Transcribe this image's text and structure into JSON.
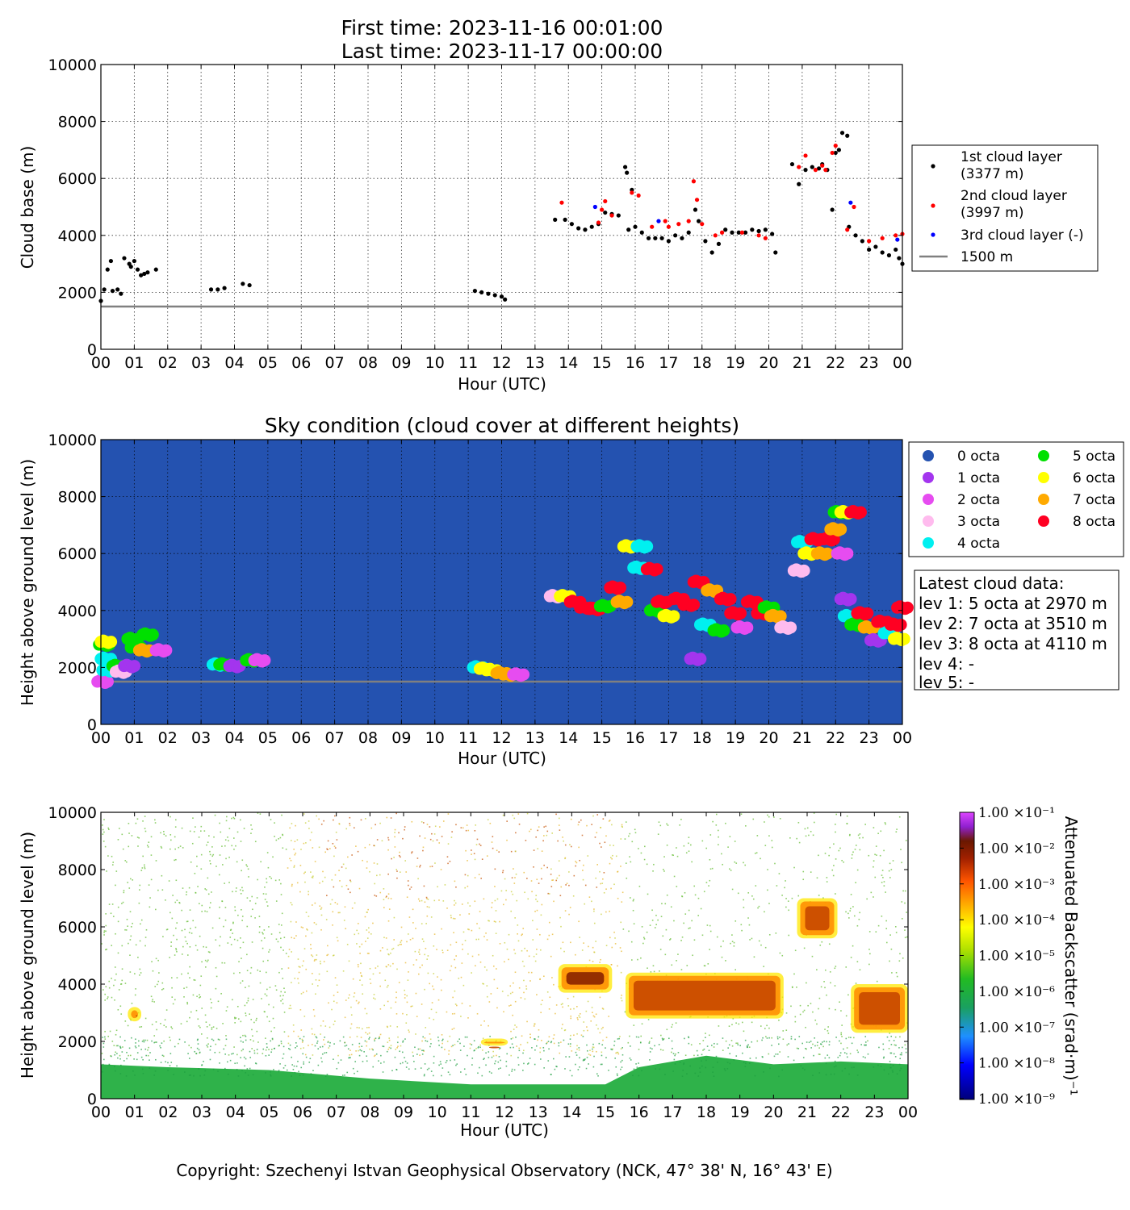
{
  "header": {
    "first_time": "First time: 2023-11-16 00:01:00",
    "last_time": "Last time: 2023-11-17 00:00:00"
  },
  "hour_ticks": [
    "00",
    "01",
    "02",
    "03",
    "04",
    "05",
    "06",
    "07",
    "08",
    "09",
    "10",
    "11",
    "12",
    "13",
    "14",
    "15",
    "16",
    "17",
    "18",
    "19",
    "20",
    "21",
    "22",
    "23",
    "00"
  ],
  "height_ticks": [
    "0",
    "2000",
    "4000",
    "6000",
    "8000",
    "10000"
  ],
  "footer": "Copyright: Szechenyi Istvan Geophysical Observatory (NCK, 47° 38' N, 16° 43' E)",
  "colors": {
    "layer1": "#000000",
    "layer2": "#ff0000",
    "layer3": "#0000ff",
    "ref_line": "#808080",
    "sky_bg": "#2452b0",
    "octa": [
      "#2452b0",
      "#a335ee",
      "#e64cf0",
      "#ffbbee",
      "#00f0f0",
      "#00e000",
      "#ffff00",
      "#ffaa00",
      "#ff0022"
    ]
  },
  "chart_data": [
    {
      "type": "scatter",
      "xlabel": "Hour (UTC)",
      "ylabel": "Cloud base (m)",
      "xlim": [
        0,
        24
      ],
      "ylim": [
        0,
        10000
      ],
      "grid": true,
      "legend_position": "right",
      "reference_line": {
        "label": "1500 m",
        "y": 1500
      },
      "series": [
        {
          "name": "1st cloud layer",
          "name_detail": "(3377 m)",
          "x": [
            0.0,
            0.1,
            0.2,
            0.3,
            0.35,
            0.5,
            0.6,
            0.7,
            0.85,
            0.9,
            1.0,
            1.1,
            1.2,
            1.3,
            1.4,
            1.65,
            3.3,
            3.5,
            3.7,
            4.25,
            4.45,
            11.2,
            11.4,
            11.6,
            11.8,
            12.0,
            12.1,
            13.6,
            13.9,
            14.1,
            14.3,
            14.5,
            14.7,
            14.9,
            15.1,
            15.3,
            15.5,
            15.7,
            15.75,
            15.8,
            15.9,
            16.0,
            16.2,
            16.4,
            16.6,
            16.8,
            17.0,
            17.2,
            17.4,
            17.6,
            17.8,
            17.9,
            18.1,
            18.3,
            18.5,
            18.7,
            18.9,
            19.1,
            19.3,
            19.5,
            19.7,
            19.9,
            20.1,
            20.2,
            20.7,
            20.9,
            21.1,
            21.3,
            21.5,
            21.6,
            21.75,
            21.9,
            22.0,
            22.1,
            22.2,
            22.35,
            22.4,
            22.6,
            22.8,
            23.0,
            23.2,
            23.4,
            23.6,
            23.8,
            23.9,
            24.0
          ],
          "y": [
            1700,
            2100,
            2800,
            3100,
            2050,
            2100,
            1950,
            3200,
            3000,
            2900,
            3100,
            2800,
            2600,
            2650,
            2700,
            2800,
            2100,
            2100,
            2150,
            2300,
            2250,
            2050,
            2000,
            1950,
            1900,
            1850,
            1750,
            4550,
            4550,
            4400,
            4250,
            4200,
            4300,
            4400,
            4800,
            4750,
            4700,
            6400,
            6200,
            4200,
            5600,
            4300,
            4100,
            3900,
            3900,
            3900,
            3800,
            4000,
            3900,
            4100,
            4900,
            4500,
            3800,
            3400,
            3700,
            4200,
            4100,
            4100,
            4100,
            4200,
            4150,
            4200,
            4050,
            3400,
            6500,
            5800,
            6300,
            6400,
            6350,
            6500,
            6300,
            4900,
            6900,
            7000,
            7600,
            7500,
            4300,
            4000,
            3800,
            3500,
            3600,
            3400,
            3300,
            3500,
            3200,
            3000
          ]
        },
        {
          "name": "2nd cloud layer",
          "name_detail": "(3997 m)",
          "x": [
            13.8,
            14.9,
            15.0,
            15.1,
            15.3,
            15.9,
            16.1,
            16.5,
            16.9,
            17.0,
            17.3,
            17.6,
            17.75,
            17.85,
            18.0,
            18.4,
            18.6,
            19.2,
            19.7,
            19.9,
            20.9,
            21.1,
            21.4,
            21.6,
            21.7,
            21.9,
            22.0,
            22.35,
            22.55,
            23.0,
            23.4,
            23.8,
            24.0
          ],
          "y": [
            5150,
            4450,
            4900,
            5200,
            4700,
            5500,
            5400,
            4300,
            4500,
            4300,
            4400,
            4500,
            5900,
            5250,
            4400,
            4000,
            4100,
            4100,
            4000,
            3900,
            6400,
            6800,
            6300,
            6450,
            6300,
            6900,
            7150,
            4200,
            5000,
            3800,
            3900,
            4000,
            4050
          ]
        },
        {
          "name": "3rd cloud layer",
          "name_detail": "(-)",
          "x": [
            14.8,
            16.7,
            22.45,
            23.85
          ],
          "y": [
            5000,
            4500,
            5150,
            3850
          ]
        }
      ]
    },
    {
      "type": "scatter",
      "title": "Sky condition (cloud cover at different heights)",
      "xlabel": "Hour (UTC)",
      "ylabel": "Height above ground level (m)",
      "xlim": [
        0,
        24
      ],
      "ylim": [
        0,
        10000
      ],
      "grid": true,
      "legend_position": "right",
      "legend": [
        "0 octa",
        "1 octa",
        "2 octa",
        "3 octa",
        "4 octa",
        "5 octa",
        "6 octa",
        "7 octa",
        "8 octa"
      ],
      "reference_line": {
        "y": 1500
      },
      "points": [
        {
          "x": 0.05,
          "y": 1500,
          "octa": 2
        },
        {
          "x": 0.1,
          "y": 2800,
          "octa": 5
        },
        {
          "x": 0.15,
          "y": 2300,
          "octa": 4
        },
        {
          "x": 0.2,
          "y": 1900,
          "octa": 4
        },
        {
          "x": 0.15,
          "y": 2900,
          "octa": 6
        },
        {
          "x": 0.5,
          "y": 2050,
          "octa": 5
        },
        {
          "x": 0.6,
          "y": 1850,
          "octa": 3
        },
        {
          "x": 0.85,
          "y": 2050,
          "octa": 1
        },
        {
          "x": 0.95,
          "y": 3000,
          "octa": 5
        },
        {
          "x": 1.05,
          "y": 2700,
          "octa": 5
        },
        {
          "x": 1.3,
          "y": 2600,
          "octa": 7
        },
        {
          "x": 1.4,
          "y": 3150,
          "octa": 5
        },
        {
          "x": 1.8,
          "y": 2600,
          "octa": 2
        },
        {
          "x": 3.5,
          "y": 2100,
          "octa": 4
        },
        {
          "x": 3.7,
          "y": 2100,
          "octa": 5
        },
        {
          "x": 4.0,
          "y": 2050,
          "octa": 1
        },
        {
          "x": 4.5,
          "y": 2250,
          "octa": 5
        },
        {
          "x": 4.75,
          "y": 2250,
          "octa": 2
        },
        {
          "x": 11.3,
          "y": 2000,
          "octa": 4
        },
        {
          "x": 11.5,
          "y": 1950,
          "octa": 6
        },
        {
          "x": 11.7,
          "y": 1900,
          "octa": 6
        },
        {
          "x": 12.0,
          "y": 1800,
          "octa": 7
        },
        {
          "x": 12.2,
          "y": 1750,
          "octa": 7
        },
        {
          "x": 12.5,
          "y": 1750,
          "octa": 2
        },
        {
          "x": 13.6,
          "y": 4500,
          "octa": 3
        },
        {
          "x": 13.9,
          "y": 4500,
          "octa": 6
        },
        {
          "x": 14.2,
          "y": 4300,
          "octa": 8
        },
        {
          "x": 14.5,
          "y": 4100,
          "octa": 8
        },
        {
          "x": 14.8,
          "y": 4050,
          "octa": 8
        },
        {
          "x": 15.1,
          "y": 4150,
          "octa": 5
        },
        {
          "x": 15.4,
          "y": 4800,
          "octa": 8
        },
        {
          "x": 15.6,
          "y": 4300,
          "octa": 7
        },
        {
          "x": 15.8,
          "y": 6250,
          "octa": 6
        },
        {
          "x": 16.2,
          "y": 6250,
          "octa": 4
        },
        {
          "x": 16.1,
          "y": 5500,
          "octa": 4
        },
        {
          "x": 16.5,
          "y": 5450,
          "octa": 8
        },
        {
          "x": 16.6,
          "y": 4000,
          "octa": 5
        },
        {
          "x": 16.8,
          "y": 4300,
          "octa": 8
        },
        {
          "x": 17.0,
          "y": 3800,
          "octa": 6
        },
        {
          "x": 17.3,
          "y": 4400,
          "octa": 8
        },
        {
          "x": 17.6,
          "y": 4200,
          "octa": 8
        },
        {
          "x": 17.8,
          "y": 2300,
          "octa": 1
        },
        {
          "x": 17.9,
          "y": 5000,
          "octa": 8
        },
        {
          "x": 18.1,
          "y": 3500,
          "octa": 4
        },
        {
          "x": 18.3,
          "y": 4700,
          "octa": 7
        },
        {
          "x": 18.5,
          "y": 3300,
          "octa": 5
        },
        {
          "x": 18.7,
          "y": 4400,
          "octa": 8
        },
        {
          "x": 19.0,
          "y": 3900,
          "octa": 8
        },
        {
          "x": 19.2,
          "y": 3400,
          "octa": 2
        },
        {
          "x": 19.5,
          "y": 4300,
          "octa": 8
        },
        {
          "x": 19.8,
          "y": 3900,
          "octa": 8
        },
        {
          "x": 20.0,
          "y": 4100,
          "octa": 5
        },
        {
          "x": 20.2,
          "y": 3800,
          "octa": 7
        },
        {
          "x": 20.5,
          "y": 3400,
          "octa": 3
        },
        {
          "x": 20.9,
          "y": 5400,
          "octa": 3
        },
        {
          "x": 21.0,
          "y": 6400,
          "octa": 4
        },
        {
          "x": 21.2,
          "y": 6000,
          "octa": 6
        },
        {
          "x": 21.4,
          "y": 6500,
          "octa": 8
        },
        {
          "x": 21.6,
          "y": 6000,
          "octa": 7
        },
        {
          "x": 21.8,
          "y": 6500,
          "octa": 8
        },
        {
          "x": 22.0,
          "y": 6850,
          "octa": 7
        },
        {
          "x": 22.1,
          "y": 7450,
          "octa": 5
        },
        {
          "x": 22.3,
          "y": 7450,
          "octa": 6
        },
        {
          "x": 22.6,
          "y": 7450,
          "octa": 8
        },
        {
          "x": 22.2,
          "y": 6000,
          "octa": 2
        },
        {
          "x": 22.3,
          "y": 4400,
          "octa": 1
        },
        {
          "x": 22.4,
          "y": 3800,
          "octa": 4
        },
        {
          "x": 22.6,
          "y": 3500,
          "octa": 5
        },
        {
          "x": 22.8,
          "y": 3900,
          "octa": 8
        },
        {
          "x": 23.0,
          "y": 3400,
          "octa": 7
        },
        {
          "x": 23.2,
          "y": 2950,
          "octa": 1
        },
        {
          "x": 23.4,
          "y": 3600,
          "octa": 8
        },
        {
          "x": 23.6,
          "y": 3200,
          "octa": 4
        },
        {
          "x": 23.8,
          "y": 3500,
          "octa": 8
        },
        {
          "x": 23.9,
          "y": 3000,
          "octa": 6
        },
        {
          "x": 24.0,
          "y": 4100,
          "octa": 8
        }
      ],
      "info_box": {
        "title": "Latest cloud data:",
        "lines": [
          "lev 1: 5 octa at 2970 m",
          "lev 2: 7 octa at 3510 m",
          "lev 3: 8 octa at 4110 m",
          "lev 4: -",
          "lev 5: -"
        ]
      }
    },
    {
      "type": "heatmap",
      "xlabel": "Hour (UTC)",
      "ylabel": "Height above ground level (m)",
      "xlim": [
        0,
        24
      ],
      "ylim": [
        0,
        10000
      ],
      "colorbar": {
        "label": "Attenuated Backscatter (srad·m)⁻¹",
        "ticks": [
          "1.00 ×10⁻⁹",
          "1.00 ×10⁻⁸",
          "1.00 ×10⁻⁷",
          "1.00 ×10⁻⁶",
          "1.00 ×10⁻⁵",
          "1.00 ×10⁻⁴",
          "1.00 ×10⁻³",
          "1.00 ×10⁻²",
          "1.00 ×10⁻¹"
        ]
      },
      "cloud_features": [
        {
          "x": [
            13.6,
            15.2
          ],
          "y": [
            3700,
            4700
          ],
          "level": "1.00 ×10⁻³"
        },
        {
          "x": [
            15.6,
            20.3
          ],
          "y": [
            2800,
            4400
          ],
          "level": "1.00 ×10⁻⁴"
        },
        {
          "x": [
            20.7,
            21.9
          ],
          "y": [
            5600,
            7000
          ],
          "level": "1.00 ×10⁻⁴"
        },
        {
          "x": [
            22.3,
            24.0
          ],
          "y": [
            2300,
            4000
          ],
          "level": "1.00 ×10⁻⁴"
        },
        {
          "x": [
            0.8,
            1.2
          ],
          "y": [
            2700,
            3200
          ],
          "level": "1.00 ×10⁻⁴"
        },
        {
          "x": [
            11.3,
            12.1
          ],
          "y": [
            1850,
            2100
          ],
          "level": "1.00 ×10⁻⁴"
        }
      ]
    }
  ]
}
